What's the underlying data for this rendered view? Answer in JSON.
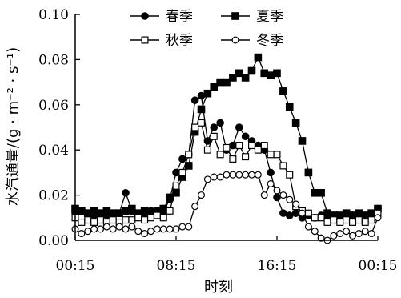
{
  "chart_data": {
    "type": "line",
    "xlabel": "时刻",
    "ylabel": "水汽通量/(g · m⁻² · s⁻¹)",
    "xlim": [
      0.25,
      24.25
    ],
    "ylim": [
      0,
      0.1
    ],
    "xticks": [
      0.25,
      8.25,
      16.25,
      24.25
    ],
    "xtick_labels": [
      "00:15",
      "08:15",
      "16:15",
      "00:15"
    ],
    "yticks": [
      0,
      0.02,
      0.04,
      0.06,
      0.08,
      0.1
    ],
    "ytick_labels": [
      "0.00",
      "0.02",
      "0.04",
      "0.06",
      "0.08",
      "0.10"
    ],
    "legend_position": "top-center",
    "grid": false,
    "x": [
      0.25,
      0.75,
      1.25,
      1.75,
      2.25,
      2.75,
      3.25,
      3.75,
      4.25,
      4.75,
      5.25,
      5.75,
      6.25,
      6.75,
      7.25,
      7.75,
      8.25,
      8.75,
      9.25,
      9.75,
      10.25,
      10.75,
      11.25,
      11.75,
      12.25,
      12.75,
      13.25,
      13.75,
      14.25,
      14.75,
      15.25,
      15.75,
      16.25,
      16.75,
      17.25,
      17.75,
      18.25,
      18.75,
      19.25,
      19.75,
      20.25,
      20.75,
      21.25,
      21.75,
      22.25,
      22.75,
      23.25,
      23.75,
      24.25
    ],
    "series": [
      {
        "name": "春季",
        "marker": "filled-circle",
        "values": [
          0.012,
          0.013,
          0.012,
          0.011,
          0.012,
          0.011,
          0.012,
          0.012,
          0.021,
          0.013,
          0.012,
          0.012,
          0.013,
          0.012,
          0.013,
          0.018,
          0.03,
          0.036,
          0.038,
          0.062,
          0.064,
          0.044,
          0.05,
          0.052,
          0.04,
          0.042,
          0.05,
          0.046,
          0.044,
          0.042,
          0.04,
          0.03,
          0.019,
          0.012,
          0.011,
          0.012,
          0.01,
          0.011,
          0.01,
          0.011,
          0.01,
          0.011,
          0.01,
          0.01,
          0.011,
          0.01,
          0.01,
          0.011,
          0.014
        ]
      },
      {
        "name": "夏季",
        "marker": "filled-square",
        "values": [
          0.014,
          0.013,
          0.012,
          0.013,
          0.012,
          0.013,
          0.012,
          0.012,
          0.013,
          0.014,
          0.012,
          0.013,
          0.012,
          0.013,
          0.014,
          0.019,
          0.021,
          0.028,
          0.033,
          0.048,
          0.058,
          0.065,
          0.068,
          0.07,
          0.07,
          0.072,
          0.074,
          0.072,
          0.075,
          0.081,
          0.074,
          0.073,
          0.074,
          0.066,
          0.059,
          0.052,
          0.044,
          0.03,
          0.021,
          0.021,
          0.012,
          0.011,
          0.011,
          0.012,
          0.011,
          0.012,
          0.011,
          0.012,
          0.014
        ]
      },
      {
        "name": "秋季",
        "marker": "open-square",
        "values": [
          0.01,
          0.008,
          0.009,
          0.008,
          0.009,
          0.008,
          0.009,
          0.008,
          0.009,
          0.009,
          0.01,
          0.009,
          0.01,
          0.011,
          0.01,
          0.013,
          0.024,
          0.03,
          0.038,
          0.05,
          0.052,
          0.04,
          0.046,
          0.038,
          0.041,
          0.036,
          0.042,
          0.037,
          0.042,
          0.04,
          0.042,
          0.038,
          0.038,
          0.033,
          0.029,
          0.015,
          0.013,
          0.012,
          0.01,
          0.01,
          0.008,
          0.009,
          0.008,
          0.009,
          0.008,
          0.009,
          0.008,
          0.009,
          0.012
        ]
      },
      {
        "name": "冬季",
        "marker": "open-circle",
        "values": [
          0.005,
          0.003,
          0.004,
          0.005,
          0.005,
          0.006,
          0.005,
          0.006,
          0.005,
          0.006,
          0.004,
          0.003,
          0.004,
          0.005,
          0.005,
          0.005,
          0.005,
          0.006,
          0.006,
          0.015,
          0.02,
          0.027,
          0.028,
          0.028,
          0.029,
          0.029,
          0.029,
          0.029,
          0.029,
          0.029,
          0.02,
          0.025,
          0.022,
          0.02,
          0.018,
          0.016,
          0.012,
          0.006,
          0.004,
          0.001,
          0.0,
          0.002,
          0.003,
          0.004,
          0.002,
          0.003,
          0.004,
          0.003,
          0.01
        ]
      }
    ]
  }
}
